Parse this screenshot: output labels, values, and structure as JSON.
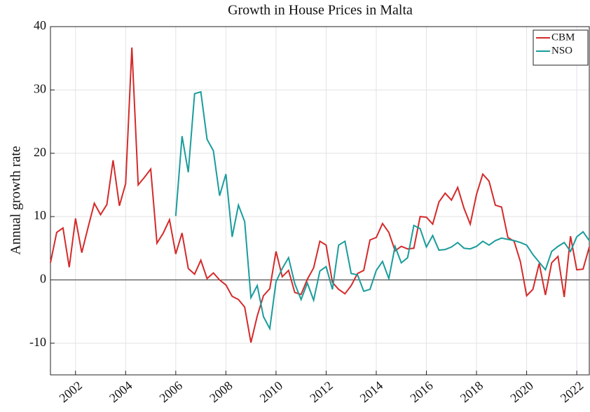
{
  "chart_data": {
    "type": "line",
    "title": "Growth in House Prices in Malta",
    "y_label": "Annual growth rate",
    "x": [
      2001,
      2001.25,
      2001.5,
      2001.75,
      2002,
      2002.25,
      2002.5,
      2002.75,
      2003,
      2003.25,
      2003.5,
      2003.75,
      2004,
      2004.25,
      2004.5,
      2004.75,
      2005,
      2005.25,
      2005.5,
      2005.75,
      2006,
      2006.25,
      2006.5,
      2006.75,
      2007,
      2007.25,
      2007.5,
      2007.75,
      2008,
      2008.25,
      2008.5,
      2008.75,
      2009,
      2009.25,
      2009.5,
      2009.75,
      2010,
      2010.25,
      2010.5,
      2010.75,
      2011,
      2011.25,
      2011.5,
      2011.75,
      2012,
      2012.25,
      2012.5,
      2012.75,
      2013,
      2013.25,
      2013.5,
      2013.75,
      2014,
      2014.25,
      2014.5,
      2014.75,
      2015,
      2015.25,
      2015.5,
      2015.75,
      2016,
      2016.25,
      2016.5,
      2016.75,
      2017,
      2017.25,
      2017.5,
      2017.75,
      2018,
      2018.25,
      2018.5,
      2018.75,
      2019,
      2019.25,
      2019.5,
      2019.75,
      2020,
      2020.25,
      2020.5,
      2020.75,
      2021,
      2021.25,
      2021.5,
      2021.75,
      2022,
      2022.25,
      2022.5
    ],
    "series": [
      {
        "name": "CBM",
        "color": "#d42a2a",
        "values": [
          2.7,
          7.5,
          8.2,
          2.0,
          9.7,
          4.3,
          8.3,
          12.1,
          10.3,
          11.9,
          18.9,
          11.7,
          15.2,
          36.7,
          15.0,
          16.2,
          17.5,
          5.8,
          7.4,
          9.5,
          4.1,
          7.4,
          1.8,
          0.9,
          3.1,
          0.2,
          1.1,
          0.0,
          -0.8,
          -2.6,
          -3.1,
          -4.3,
          -9.9,
          -5.7,
          -2.5,
          -1.4,
          4.5,
          0.5,
          1.5,
          -2.0,
          -2.3,
          0.1,
          1.9,
          6.1,
          5.5,
          -0.4,
          -1.5,
          -2.2,
          -0.9,
          1.0,
          1.5,
          6.3,
          6.7,
          8.9,
          7.5,
          4.6,
          5.3,
          4.9,
          5.0,
          10.0,
          9.9,
          8.8,
          12.3,
          13.7,
          12.6,
          14.6,
          11.3,
          8.8,
          13.5,
          16.7,
          15.6,
          11.8,
          11.5,
          6.7,
          6.1,
          2.9,
          -2.5,
          -1.5,
          2.6,
          -2.4,
          2.7,
          3.7,
          -2.7,
          6.9,
          1.6,
          1.7,
          5.2
        ]
      },
      {
        "name": "NSO",
        "color": "#1a9c9c",
        "values": [
          null,
          null,
          null,
          null,
          null,
          null,
          null,
          null,
          null,
          null,
          null,
          null,
          null,
          null,
          null,
          null,
          null,
          null,
          null,
          null,
          10.1,
          22.7,
          17.0,
          29.4,
          29.7,
          22.2,
          20.4,
          13.3,
          16.7,
          6.8,
          11.8,
          9.2,
          -2.8,
          -0.9,
          -5.8,
          -7.7,
          -0.3,
          1.8,
          3.5,
          -0.6,
          -3.1,
          -0.5,
          -3.2,
          1.4,
          2.1,
          -1.5,
          5.5,
          6.1,
          1.0,
          0.8,
          -1.8,
          -1.5,
          1.5,
          2.9,
          0.2,
          5.3,
          2.7,
          3.5,
          8.6,
          8.1,
          5.2,
          7.0,
          4.7,
          4.8,
          5.2,
          5.9,
          5.0,
          4.9,
          5.3,
          6.1,
          5.5,
          6.2,
          6.6,
          6.4,
          6.2,
          5.9,
          5.5,
          4.0,
          2.8,
          1.6,
          4.5,
          5.3,
          5.9,
          4.5,
          6.8,
          7.6,
          6.2
        ]
      }
    ],
    "xlim": [
      2001,
      2022.5
    ],
    "xticks": [
      2002,
      2004,
      2006,
      2008,
      2010,
      2012,
      2014,
      2016,
      2018,
      2020,
      2022
    ],
    "ylim": [
      -15,
      40
    ],
    "yticks": [
      -10,
      0,
      10,
      20,
      30,
      40
    ],
    "grid": true,
    "legend": "northeast"
  }
}
